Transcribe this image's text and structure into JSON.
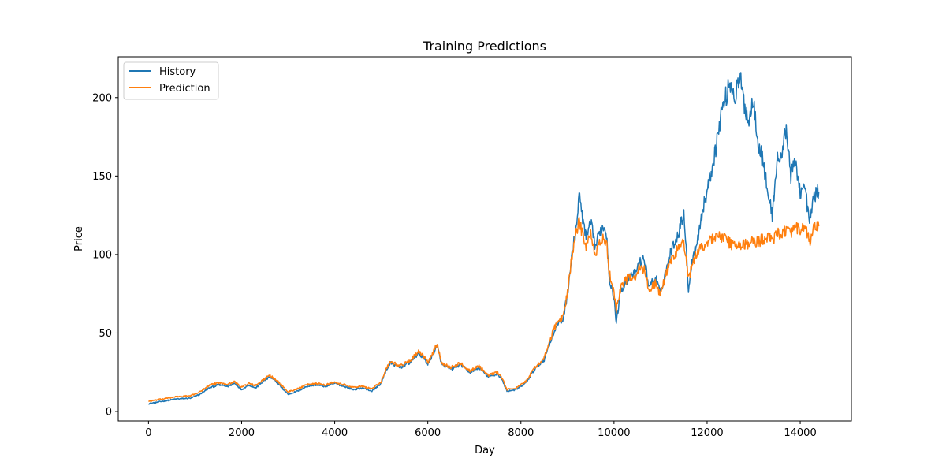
{
  "chart_data": {
    "type": "line",
    "title": "Training Predictions",
    "xlabel": "Day",
    "ylabel": "Price",
    "xlim": [
      -650,
      15100
    ],
    "ylim": [
      -6,
      226
    ],
    "xticks": [
      0,
      2000,
      4000,
      6000,
      8000,
      10000,
      12000,
      14000
    ],
    "yticks": [
      0,
      50,
      100,
      150,
      200
    ],
    "grid": false,
    "legend": "upper-left",
    "series": [
      {
        "name": "History",
        "color": "#1f77b4",
        "points": [
          [
            0,
            5
          ],
          [
            300,
            6.5
          ],
          [
            600,
            8
          ],
          [
            900,
            8.5
          ],
          [
            1100,
            11
          ],
          [
            1300,
            15
          ],
          [
            1500,
            17
          ],
          [
            1700,
            16
          ],
          [
            1850,
            18
          ],
          [
            2000,
            14
          ],
          [
            2150,
            17
          ],
          [
            2300,
            15
          ],
          [
            2500,
            20
          ],
          [
            2600,
            22
          ],
          [
            2750,
            19
          ],
          [
            2900,
            14
          ],
          [
            3000,
            11
          ],
          [
            3200,
            13
          ],
          [
            3400,
            16
          ],
          [
            3600,
            17
          ],
          [
            3800,
            16
          ],
          [
            4000,
            18
          ],
          [
            4200,
            16
          ],
          [
            4400,
            14
          ],
          [
            4600,
            15
          ],
          [
            4800,
            13
          ],
          [
            5000,
            18
          ],
          [
            5100,
            26
          ],
          [
            5200,
            31
          ],
          [
            5400,
            28
          ],
          [
            5600,
            31
          ],
          [
            5800,
            37
          ],
          [
            5950,
            33
          ],
          [
            6000,
            30
          ],
          [
            6100,
            36
          ],
          [
            6200,
            42
          ],
          [
            6300,
            30
          ],
          [
            6500,
            27
          ],
          [
            6700,
            30
          ],
          [
            6900,
            25
          ],
          [
            7100,
            28
          ],
          [
            7300,
            22
          ],
          [
            7500,
            24
          ],
          [
            7600,
            20
          ],
          [
            7700,
            13
          ],
          [
            7900,
            14
          ],
          [
            8100,
            18
          ],
          [
            8300,
            27
          ],
          [
            8500,
            33
          ],
          [
            8600,
            42
          ],
          [
            8700,
            50
          ],
          [
            8800,
            56
          ],
          [
            8900,
            58
          ],
          [
            9000,
            75
          ],
          [
            9100,
            100
          ],
          [
            9200,
            120
          ],
          [
            9250,
            138
          ],
          [
            9300,
            128
          ],
          [
            9400,
            110
          ],
          [
            9500,
            120
          ],
          [
            9600,
            105
          ],
          [
            9700,
            115
          ],
          [
            9800,
            118
          ],
          [
            9850,
            110
          ],
          [
            9900,
            85
          ],
          [
            10000,
            72
          ],
          [
            10050,
            57
          ],
          [
            10150,
            78
          ],
          [
            10300,
            84
          ],
          [
            10450,
            88
          ],
          [
            10550,
            95
          ],
          [
            10650,
            97
          ],
          [
            10750,
            80
          ],
          [
            10900,
            85
          ],
          [
            11000,
            75
          ],
          [
            11100,
            88
          ],
          [
            11200,
            100
          ],
          [
            11300,
            108
          ],
          [
            11400,
            115
          ],
          [
            11500,
            128
          ],
          [
            11600,
            78
          ],
          [
            11700,
            100
          ],
          [
            11800,
            110
          ],
          [
            11900,
            128
          ],
          [
            12000,
            140
          ],
          [
            12100,
            155
          ],
          [
            12200,
            170
          ],
          [
            12300,
            190
          ],
          [
            12400,
            200
          ],
          [
            12500,
            210
          ],
          [
            12600,
            200
          ],
          [
            12700,
            213
          ],
          [
            12800,
            196
          ],
          [
            12900,
            185
          ],
          [
            13000,
            200
          ],
          [
            13100,
            170
          ],
          [
            13200,
            160
          ],
          [
            13300,
            140
          ],
          [
            13400,
            125
          ],
          [
            13500,
            160
          ],
          [
            13600,
            162
          ],
          [
            13700,
            182
          ],
          [
            13800,
            150
          ],
          [
            13900,
            160
          ],
          [
            14000,
            140
          ],
          [
            14100,
            143
          ],
          [
            14200,
            120
          ],
          [
            14300,
            138
          ],
          [
            14400,
            140
          ]
        ]
      },
      {
        "name": "Prediction",
        "color": "#ff7f0e",
        "points": [
          [
            0,
            6.5
          ],
          [
            300,
            8
          ],
          [
            600,
            9.5
          ],
          [
            900,
            10
          ],
          [
            1100,
            12.5
          ],
          [
            1300,
            16.5
          ],
          [
            1500,
            18.5
          ],
          [
            1700,
            17.5
          ],
          [
            1850,
            19
          ],
          [
            2000,
            15.5
          ],
          [
            2150,
            18
          ],
          [
            2300,
            16.5
          ],
          [
            2500,
            21
          ],
          [
            2600,
            23
          ],
          [
            2750,
            20
          ],
          [
            2900,
            15.5
          ],
          [
            3000,
            12.5
          ],
          [
            3200,
            14.5
          ],
          [
            3400,
            17
          ],
          [
            3600,
            18
          ],
          [
            3800,
            17
          ],
          [
            4000,
            19
          ],
          [
            4200,
            17
          ],
          [
            4400,
            15.5
          ],
          [
            4600,
            16
          ],
          [
            4800,
            14.5
          ],
          [
            5000,
            19
          ],
          [
            5100,
            27
          ],
          [
            5200,
            32
          ],
          [
            5400,
            29
          ],
          [
            5600,
            32
          ],
          [
            5800,
            38
          ],
          [
            5950,
            34
          ],
          [
            6000,
            31
          ],
          [
            6100,
            37
          ],
          [
            6200,
            43
          ],
          [
            6300,
            31
          ],
          [
            6500,
            28
          ],
          [
            6700,
            31
          ],
          [
            6900,
            26
          ],
          [
            7100,
            29
          ],
          [
            7300,
            23
          ],
          [
            7500,
            25
          ],
          [
            7600,
            21
          ],
          [
            7700,
            14
          ],
          [
            7900,
            15
          ],
          [
            8100,
            19
          ],
          [
            8300,
            28
          ],
          [
            8500,
            34
          ],
          [
            8600,
            43
          ],
          [
            8700,
            52
          ],
          [
            8800,
            58
          ],
          [
            8900,
            60
          ],
          [
            9000,
            76
          ],
          [
            9100,
            100
          ],
          [
            9200,
            115
          ],
          [
            9250,
            120
          ],
          [
            9300,
            116
          ],
          [
            9400,
            105
          ],
          [
            9500,
            112
          ],
          [
            9600,
            100
          ],
          [
            9700,
            108
          ],
          [
            9800,
            110
          ],
          [
            9850,
            104
          ],
          [
            9900,
            88
          ],
          [
            10000,
            76
          ],
          [
            10050,
            65
          ],
          [
            10150,
            80
          ],
          [
            10300,
            85
          ],
          [
            10450,
            86
          ],
          [
            10550,
            92
          ],
          [
            10650,
            90
          ],
          [
            10750,
            78
          ],
          [
            10900,
            82
          ],
          [
            11000,
            74
          ],
          [
            11100,
            86
          ],
          [
            11200,
            95
          ],
          [
            11300,
            100
          ],
          [
            11400,
            105
          ],
          [
            11500,
            108
          ],
          [
            11600,
            84
          ],
          [
            11700,
            95
          ],
          [
            11800,
            102
          ],
          [
            11900,
            105
          ],
          [
            12000,
            108
          ],
          [
            12100,
            110
          ],
          [
            12200,
            112
          ],
          [
            12300,
            111
          ],
          [
            12400,
            110
          ],
          [
            12500,
            107
          ],
          [
            12600,
            106
          ],
          [
            12700,
            105
          ],
          [
            12800,
            107
          ],
          [
            12900,
            106
          ],
          [
            13000,
            109
          ],
          [
            13100,
            108
          ],
          [
            13200,
            110
          ],
          [
            13300,
            112
          ],
          [
            13400,
            108
          ],
          [
            13500,
            113
          ],
          [
            13600,
            114
          ],
          [
            13700,
            116
          ],
          [
            13800,
            113
          ],
          [
            13900,
            117
          ],
          [
            14000,
            115
          ],
          [
            14100,
            117
          ],
          [
            14200,
            108
          ],
          [
            14300,
            117
          ],
          [
            14400,
            118
          ]
        ]
      }
    ]
  }
}
